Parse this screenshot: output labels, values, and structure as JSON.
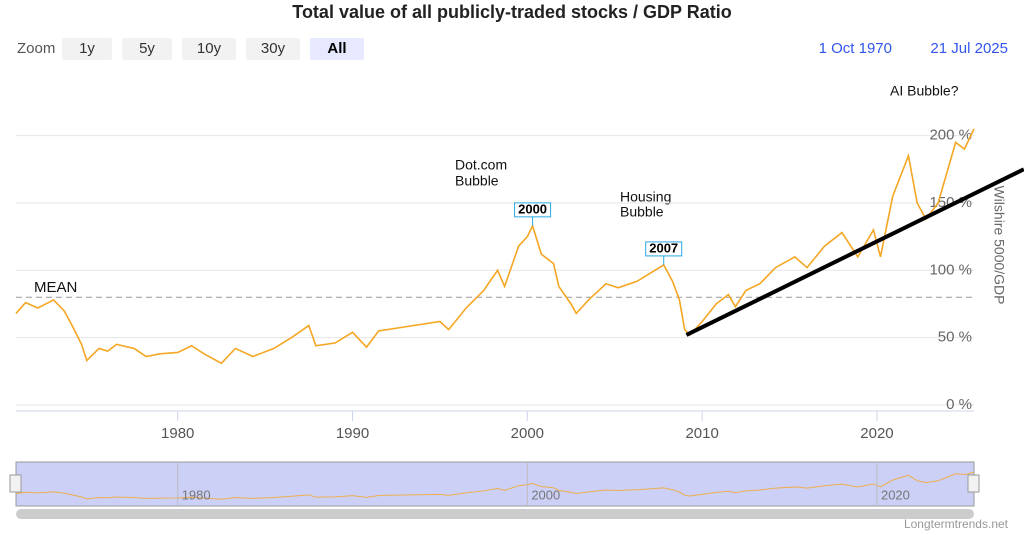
{
  "chart_data": {
    "type": "line",
    "title": "Total value of all publicly-traded stocks / GDP Ratio",
    "range_selector": {
      "zoom_label": "Zoom",
      "buttons": [
        "1y",
        "5y",
        "10y",
        "30y",
        "All"
      ],
      "selected": "All",
      "from": "1 Oct 1970",
      "to": "21 Jul 2025"
    },
    "y_axis_label": "Wilshire 5000/GDP",
    "xlim": [
      1970.75,
      2025.55
    ],
    "xticks": [
      1980,
      1990,
      2000,
      2010,
      2020
    ],
    "ylim": [
      0,
      245
    ],
    "yticks": [
      {
        "value": 0,
        "label": "0 %"
      },
      {
        "value": 50,
        "label": "50 %"
      },
      {
        "value": 100,
        "label": "100 %"
      },
      {
        "value": 150,
        "label": "150 %"
      },
      {
        "value": 200,
        "label": "200 %"
      }
    ],
    "grid": true,
    "series": [
      {
        "name": "Wilshire 5000/GDP",
        "color": "#f5a623",
        "x": [
          1970.75,
          1971.3,
          1972.0,
          1972.9,
          1973.5,
          1974.0,
          1974.5,
          1974.8,
          1975.5,
          1976.0,
          1976.5,
          1977.5,
          1978.2,
          1979.0,
          1980.0,
          1980.8,
          1981.5,
          1982.5,
          1983.3,
          1984.3,
          1985.5,
          1986.5,
          1987.5,
          1987.9,
          1989.0,
          1990.0,
          1990.8,
          1991.5,
          1993.0,
          1995.0,
          1995.5,
          1996.5,
          1997.5,
          1998.3,
          1998.7,
          1999.5,
          2000.0,
          2000.3,
          2000.8,
          2001.5,
          2001.8,
          2002.5,
          2002.8,
          2003.5,
          2004.5,
          2005.2,
          2006.3,
          2007.3,
          2007.8,
          2008.3,
          2008.7,
          2009.0,
          2009.3,
          2010.0,
          2010.8,
          2011.5,
          2011.9,
          2012.5,
          2013.3,
          2014.2,
          2015.3,
          2016.0,
          2017.0,
          2018.0,
          2018.9,
          2019.8,
          2020.2,
          2020.9,
          2021.8,
          2022.3,
          2022.8,
          2023.5,
          2024.5,
          2025.0,
          2025.55
        ],
        "values": [
          68,
          76,
          72,
          78,
          70,
          58,
          45,
          33,
          42,
          40,
          45,
          42,
          36,
          38,
          39,
          44,
          38,
          31,
          42,
          36,
          42,
          50,
          59,
          44,
          46,
          54,
          43,
          55,
          58,
          62,
          56,
          72,
          85,
          100,
          88,
          118,
          125,
          133,
          112,
          105,
          88,
          75,
          68,
          78,
          90,
          87,
          92,
          100,
          104,
          92,
          78,
          56,
          52,
          62,
          75,
          82,
          73,
          85,
          90,
          102,
          110,
          102,
          118,
          128,
          110,
          130,
          110,
          155,
          185,
          150,
          138,
          150,
          195,
          190,
          205
        ]
      }
    ],
    "mean": {
      "value": 80,
      "label": "MEAN"
    },
    "trendline": {
      "x": [
        2009.1,
        2028.4
      ],
      "values": [
        52,
        175
      ]
    },
    "annotations": [
      "Dot.com",
      "Bubble",
      "Housing",
      "Bubble",
      "AI Bubble?"
    ],
    "flags": [
      {
        "x": 2000.3,
        "title": "2000"
      },
      {
        "x": 2007.8,
        "title": "2007"
      }
    ],
    "navigator": {
      "xticks": [
        1980,
        2000,
        2020
      ]
    },
    "credit": "Longtermtrends.net"
  }
}
